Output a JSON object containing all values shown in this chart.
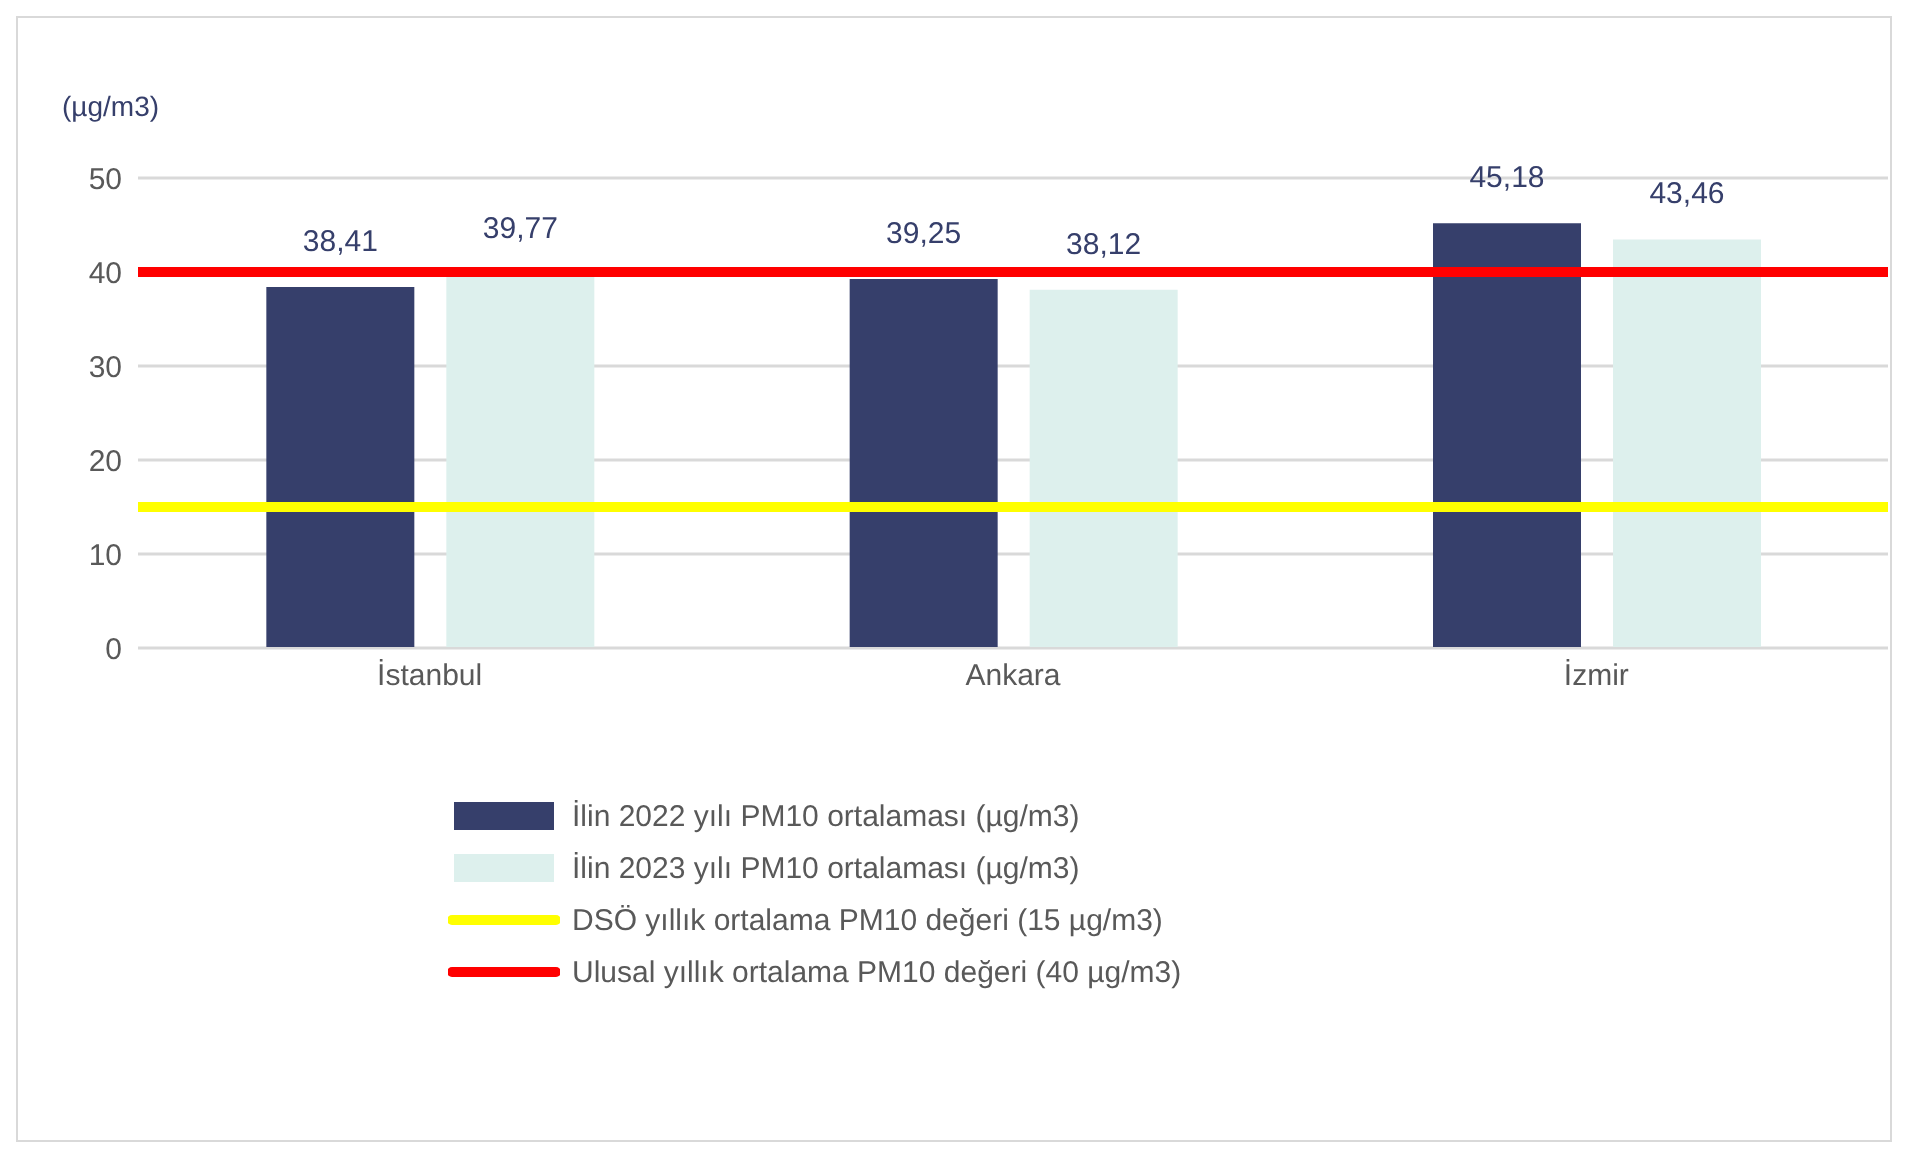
{
  "chart_data": {
    "type": "bar",
    "ylabel": "(µg/m3)",
    "categories": [
      "İstanbul",
      "Ankara",
      "İzmir"
    ],
    "series": [
      {
        "name": "İlin 2022 yılı PM10 ortalaması (µg/m3)",
        "color": "#363f6b",
        "values": [
          38.41,
          39.25,
          45.18
        ]
      },
      {
        "name": "İlin 2023 yılı PM10 ortalaması (µg/m3)",
        "color": "#ddf0ed",
        "values": [
          39.77,
          38.12,
          43.46
        ]
      }
    ],
    "value_labels": [
      [
        "38,41",
        "39,25",
        "45,18"
      ],
      [
        "39,77",
        "38,12",
        "43,46"
      ]
    ],
    "ylim": [
      0,
      50
    ],
    "yticks": [
      0,
      10,
      20,
      30,
      40,
      50
    ],
    "grid": "y",
    "legend": "bottom",
    "ref_lines": [
      {
        "axis": "y",
        "value": 15,
        "label": "DSÖ yıllık ortalama PM10 değeri (15 µg/m3)",
        "color": "#ffff00"
      },
      {
        "axis": "y",
        "value": 40,
        "label": "Ulusal yıllık ortalama PM10 değeri (40 µg/m3)",
        "color": "#ff0000"
      }
    ]
  }
}
